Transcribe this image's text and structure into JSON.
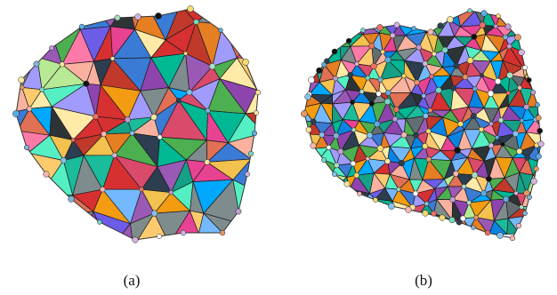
{
  "figure": {
    "panels": [
      {
        "label": "(a)",
        "shape": "coarse-triangulated-mesh"
      },
      {
        "label": "(b)",
        "shape": "fine-triangulated-mesh"
      }
    ]
  },
  "palette": [
    "#d94a6b",
    "#3a7bd5",
    "#f2c14e",
    "#4caf50",
    "#8e44ad",
    "#e67e22",
    "#1abc9c",
    "#c0392b",
    "#2c3e50",
    "#9b59b6",
    "#f39c12",
    "#16a085",
    "#e84393",
    "#00a8ff",
    "#7f8c8d",
    "#b8e994",
    "#6c5ce7",
    "#fd79a8",
    "#2d3436",
    "#55efc4",
    "#a29bfe",
    "#fab1a0",
    "#0984e3",
    "#d63031",
    "#fdcb6e",
    "#00b894",
    "#636e72",
    "#e17055",
    "#74b9ff",
    "#ffeaa7"
  ],
  "vertex_colors": [
    "#f5b7b1",
    "#85c1e9",
    "#f9e79f",
    "#a9dfbf",
    "#d2b4de",
    "#2c3e50",
    "#e59866",
    "#7fb3d5",
    "#c39bd3",
    "#111111",
    "#76d7c4",
    "#f7dc6f",
    "#ec7063",
    "#5dade2",
    "#ffffff"
  ]
}
